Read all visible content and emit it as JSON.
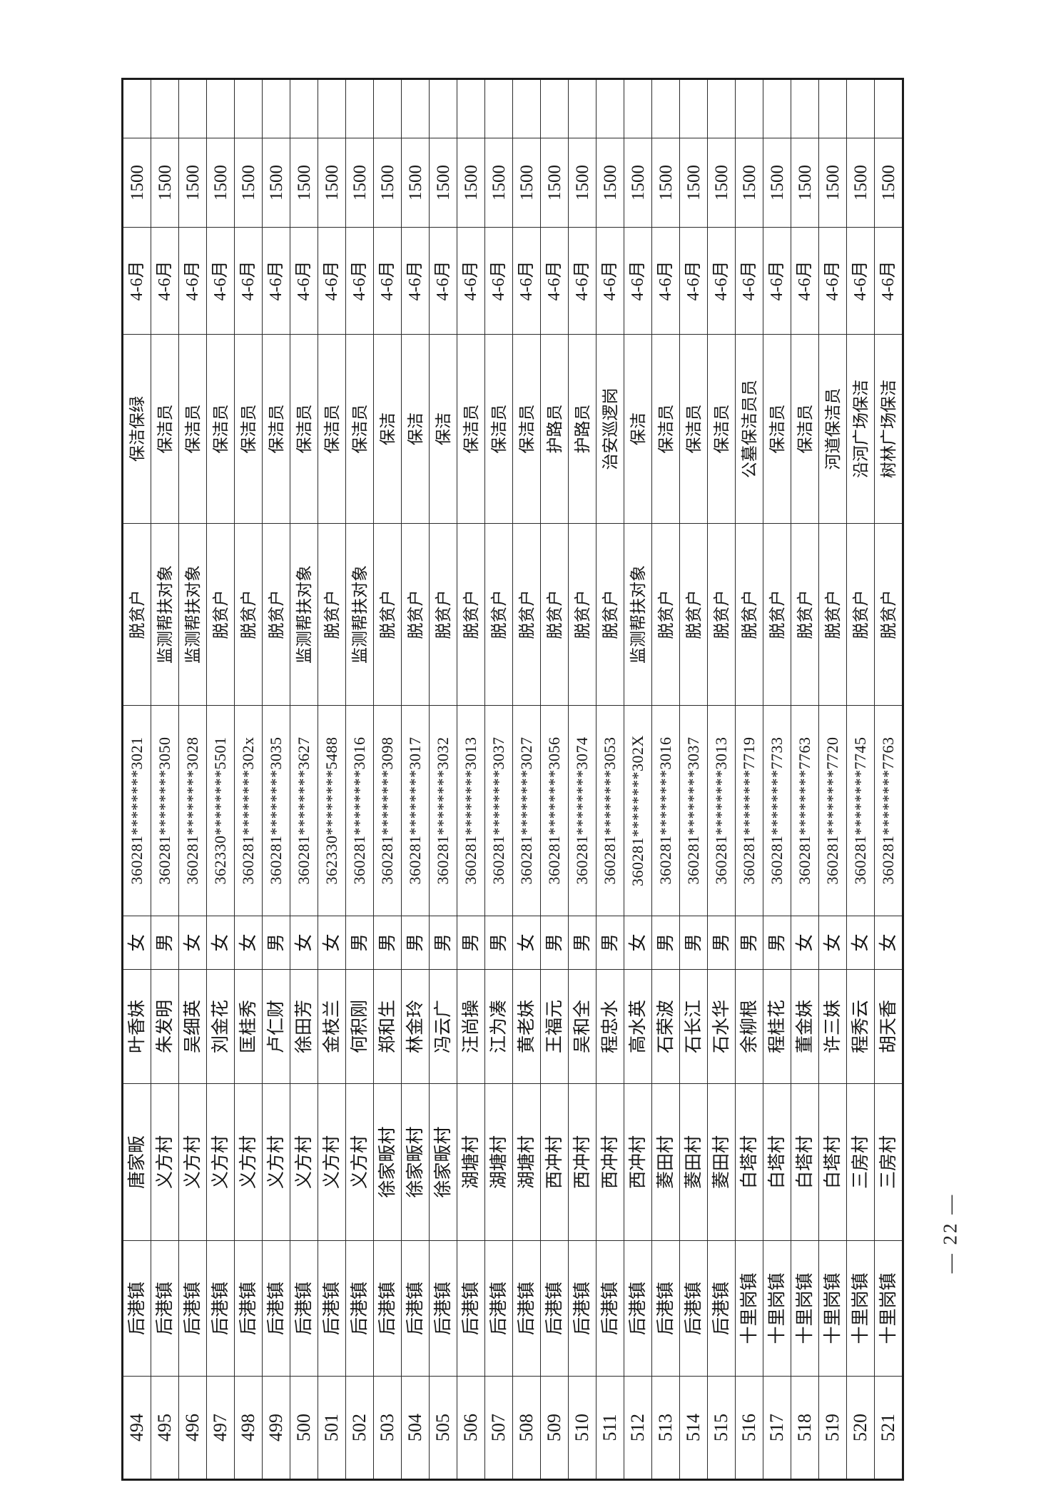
{
  "page": {
    "background": "#ffffff",
    "page_number": "— 22 —",
    "grid_color": "#2b2b2b",
    "text_color": "#161616"
  },
  "table": {
    "orientation": "landscape-rotated-90ccw",
    "rows": [
      {
        "seq": "494",
        "town": "后港镇",
        "village": "唐家畈",
        "name": "叶香妹",
        "gender": "女",
        "id": "360281********3021",
        "category": "脱贫户",
        "job": "保洁保绿",
        "months": "4-6月",
        "amount": "1500",
        "remark": ""
      },
      {
        "seq": "495",
        "town": "后港镇",
        "village": "义方村",
        "name": "朱发明",
        "gender": "男",
        "id": "360281********3050",
        "category": "监测帮扶对象",
        "job": "保洁员",
        "months": "4-6月",
        "amount": "1500",
        "remark": ""
      },
      {
        "seq": "496",
        "town": "后港镇",
        "village": "义方村",
        "name": "吴细英",
        "gender": "女",
        "id": "360281********3028",
        "category": "监测帮扶对象",
        "job": "保洁员",
        "months": "4-6月",
        "amount": "1500",
        "remark": ""
      },
      {
        "seq": "497",
        "town": "后港镇",
        "village": "义方村",
        "name": "刘金花",
        "gender": "女",
        "id": "362330********5501",
        "category": "脱贫户",
        "job": "保洁员",
        "months": "4-6月",
        "amount": "1500",
        "remark": ""
      },
      {
        "seq": "498",
        "town": "后港镇",
        "village": "义方村",
        "name": "匡桂秀",
        "gender": "女",
        "id": "360281********302x",
        "category": "脱贫户",
        "job": "保洁员",
        "months": "4-6月",
        "amount": "1500",
        "remark": ""
      },
      {
        "seq": "499",
        "town": "后港镇",
        "village": "义方村",
        "name": "卢仁财",
        "gender": "男",
        "id": "360281********3035",
        "category": "脱贫户",
        "job": "保洁员",
        "months": "4-6月",
        "amount": "1500",
        "remark": ""
      },
      {
        "seq": "500",
        "town": "后港镇",
        "village": "义方村",
        "name": "徐田芳",
        "gender": "女",
        "id": "360281********3627",
        "category": "监测帮扶对象",
        "job": "保洁员",
        "months": "4-6月",
        "amount": "1500",
        "remark": ""
      },
      {
        "seq": "501",
        "town": "后港镇",
        "village": "义方村",
        "name": "金枝兰",
        "gender": "女",
        "id": "362330********5488",
        "category": "脱贫户",
        "job": "保洁员",
        "months": "4-6月",
        "amount": "1500",
        "remark": ""
      },
      {
        "seq": "502",
        "town": "后港镇",
        "village": "义方村",
        "name": "何积刚",
        "gender": "男",
        "id": "360281********3016",
        "category": "监测帮扶对象",
        "job": "保洁员",
        "months": "4-6月",
        "amount": "1500",
        "remark": ""
      },
      {
        "seq": "503",
        "town": "后港镇",
        "village": "徐家畈村",
        "name": "郑和生",
        "gender": "男",
        "id": "360281********3098",
        "category": "脱贫户",
        "job": "保洁",
        "months": "4-6月",
        "amount": "1500",
        "remark": ""
      },
      {
        "seq": "504",
        "town": "后港镇",
        "village": "徐家畈村",
        "name": "林金玲",
        "gender": "男",
        "id": "360281********3017",
        "category": "脱贫户",
        "job": "保洁",
        "months": "4-6月",
        "amount": "1500",
        "remark": ""
      },
      {
        "seq": "505",
        "town": "后港镇",
        "village": "徐家畈村",
        "name": "冯云广",
        "gender": "男",
        "id": "360281********3032",
        "category": "脱贫户",
        "job": "保洁",
        "months": "4-6月",
        "amount": "1500",
        "remark": ""
      },
      {
        "seq": "506",
        "town": "后港镇",
        "village": "湖塘村",
        "name": "汪尚操",
        "gender": "男",
        "id": "360281********3013",
        "category": "脱贫户",
        "job": "保洁员",
        "months": "4-6月",
        "amount": "1500",
        "remark": ""
      },
      {
        "seq": "507",
        "town": "后港镇",
        "village": "湖塘村",
        "name": "江为凑",
        "gender": "男",
        "id": "360281********3037",
        "category": "脱贫户",
        "job": "保洁员",
        "months": "4-6月",
        "amount": "1500",
        "remark": ""
      },
      {
        "seq": "508",
        "town": "后港镇",
        "village": "湖塘村",
        "name": "黄老妹",
        "gender": "女",
        "id": "360281********3027",
        "category": "脱贫户",
        "job": "保洁员",
        "months": "4-6月",
        "amount": "1500",
        "remark": ""
      },
      {
        "seq": "509",
        "town": "后港镇",
        "village": "西冲村",
        "name": "王福元",
        "gender": "男",
        "id": "360281********3056",
        "category": "脱贫户",
        "job": "护路员",
        "months": "4-6月",
        "amount": "1500",
        "remark": ""
      },
      {
        "seq": "510",
        "town": "后港镇",
        "village": "西冲村",
        "name": "吴和全",
        "gender": "男",
        "id": "360281********3074",
        "category": "脱贫户",
        "job": "护路员",
        "months": "4-6月",
        "amount": "1500",
        "remark": ""
      },
      {
        "seq": "511",
        "town": "后港镇",
        "village": "西冲村",
        "name": "程忠水",
        "gender": "男",
        "id": "360281********3053",
        "category": "脱贫户",
        "job": "治安巡逻岗",
        "months": "4-6月",
        "amount": "1500",
        "remark": ""
      },
      {
        "seq": "512",
        "town": "后港镇",
        "village": "西冲村",
        "name": "高水英",
        "gender": "女",
        "id": "360281********302X",
        "category": "监测帮扶对象",
        "job": "保洁",
        "months": "4-6月",
        "amount": "1500",
        "remark": ""
      },
      {
        "seq": "513",
        "town": "后港镇",
        "village": "菱田村",
        "name": "石荣波",
        "gender": "男",
        "id": "360281********3016",
        "category": "脱贫户",
        "job": "保洁员",
        "months": "4-6月",
        "amount": "1500",
        "remark": ""
      },
      {
        "seq": "514",
        "town": "后港镇",
        "village": "菱田村",
        "name": "石长江",
        "gender": "男",
        "id": "360281********3037",
        "category": "脱贫户",
        "job": "保洁员",
        "months": "4-6月",
        "amount": "1500",
        "remark": ""
      },
      {
        "seq": "515",
        "town": "后港镇",
        "village": "菱田村",
        "name": "石水华",
        "gender": "男",
        "id": "360281********3013",
        "category": "脱贫户",
        "job": "保洁员",
        "months": "4-6月",
        "amount": "1500",
        "remark": ""
      },
      {
        "seq": "516",
        "town": "十里岗镇",
        "village": "白塔村",
        "name": "余柳根",
        "gender": "男",
        "id": "360281********7719",
        "category": "脱贫户",
        "job": "公墓保洁员员",
        "months": "4-6月",
        "amount": "1500",
        "remark": ""
      },
      {
        "seq": "517",
        "town": "十里岗镇",
        "village": "白塔村",
        "name": "程桂花",
        "gender": "男",
        "id": "360281********7733",
        "category": "脱贫户",
        "job": "保洁员",
        "months": "4-6月",
        "amount": "1500",
        "remark": ""
      },
      {
        "seq": "518",
        "town": "十里岗镇",
        "village": "白塔村",
        "name": "董金妹",
        "gender": "女",
        "id": "360281********7763",
        "category": "脱贫户",
        "job": "保洁员",
        "months": "4-6月",
        "amount": "1500",
        "remark": ""
      },
      {
        "seq": "519",
        "town": "十里岗镇",
        "village": "白塔村",
        "name": "许三妹",
        "gender": "女",
        "id": "360281********7720",
        "category": "脱贫户",
        "job": "河道保洁员",
        "months": "4-6月",
        "amount": "1500",
        "remark": ""
      },
      {
        "seq": "520",
        "town": "十里岗镇",
        "village": "三房村",
        "name": "程秀云",
        "gender": "女",
        "id": "360281********7745",
        "category": "脱贫户",
        "job": "沿河广场保洁",
        "months": "4-6月",
        "amount": "1500",
        "remark": ""
      },
      {
        "seq": "521",
        "town": "十里岗镇",
        "village": "三房村",
        "name": "胡天香",
        "gender": "女",
        "id": "360281********7763",
        "category": "脱贫户",
        "job": "树林广场保洁",
        "months": "4-6月",
        "amount": "1500",
        "remark": ""
      }
    ]
  }
}
